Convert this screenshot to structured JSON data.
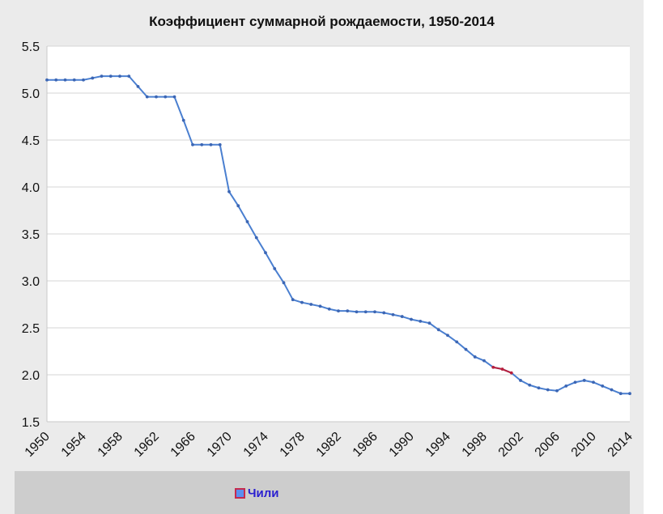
{
  "chart_data": {
    "type": "line",
    "title": "Коэффициент суммарной рождаемости, 1950-2014",
    "xlabel": "",
    "ylabel": "",
    "xlim": [
      1950,
      2014
    ],
    "ylim": [
      1.5,
      5.5
    ],
    "y_ticks": [
      "1.5",
      "2.0",
      "2.5",
      "3.0",
      "3.5",
      "4.0",
      "4.5",
      "5.0",
      "5.5"
    ],
    "x_ticks": [
      "1950",
      "1954",
      "1958",
      "1962",
      "1966",
      "1970",
      "1974",
      "1978",
      "1982",
      "1986",
      "1990",
      "1994",
      "1998",
      "2002",
      "2006",
      "2010",
      "2014"
    ],
    "grid": true,
    "legend_position": "bottom",
    "series": [
      {
        "name": "Чили",
        "color": "#4a7fd0",
        "x": [
          1950,
          1951,
          1952,
          1953,
          1954,
          1955,
          1956,
          1957,
          1958,
          1959,
          1960,
          1961,
          1962,
          1963,
          1964,
          1965,
          1966,
          1967,
          1968,
          1969,
          1970,
          1971,
          1972,
          1973,
          1974,
          1975,
          1976,
          1977,
          1978,
          1979,
          1980,
          1981,
          1982,
          1983,
          1984,
          1985,
          1986,
          1987,
          1988,
          1989,
          1990,
          1991,
          1992,
          1993,
          1994,
          1995,
          1996,
          1997,
          1998,
          1999,
          2000,
          2001,
          2002,
          2003,
          2004,
          2005,
          2006,
          2007,
          2008,
          2009,
          2010,
          2011,
          2012,
          2013,
          2014
        ],
        "values": [
          5.14,
          5.14,
          5.14,
          5.14,
          5.14,
          5.16,
          5.18,
          5.18,
          5.18,
          5.18,
          5.07,
          4.96,
          4.96,
          4.96,
          4.96,
          4.71,
          4.45,
          4.45,
          4.45,
          4.45,
          3.95,
          3.8,
          3.63,
          3.46,
          3.3,
          3.13,
          2.98,
          2.8,
          2.77,
          2.75,
          2.73,
          2.7,
          2.68,
          2.68,
          2.67,
          2.67,
          2.67,
          2.66,
          2.64,
          2.62,
          2.59,
          2.57,
          2.55,
          2.48,
          2.42,
          2.35,
          2.27,
          2.19,
          2.15,
          2.08,
          2.06,
          2.02,
          1.94,
          1.89,
          1.86,
          1.84,
          1.83,
          1.88,
          1.92,
          1.94,
          1.92,
          1.88,
          1.84,
          1.8,
          1.8
        ]
      }
    ],
    "highlight_range": [
      1999,
      2001
    ],
    "highlight_color": "#b81f3c"
  }
}
